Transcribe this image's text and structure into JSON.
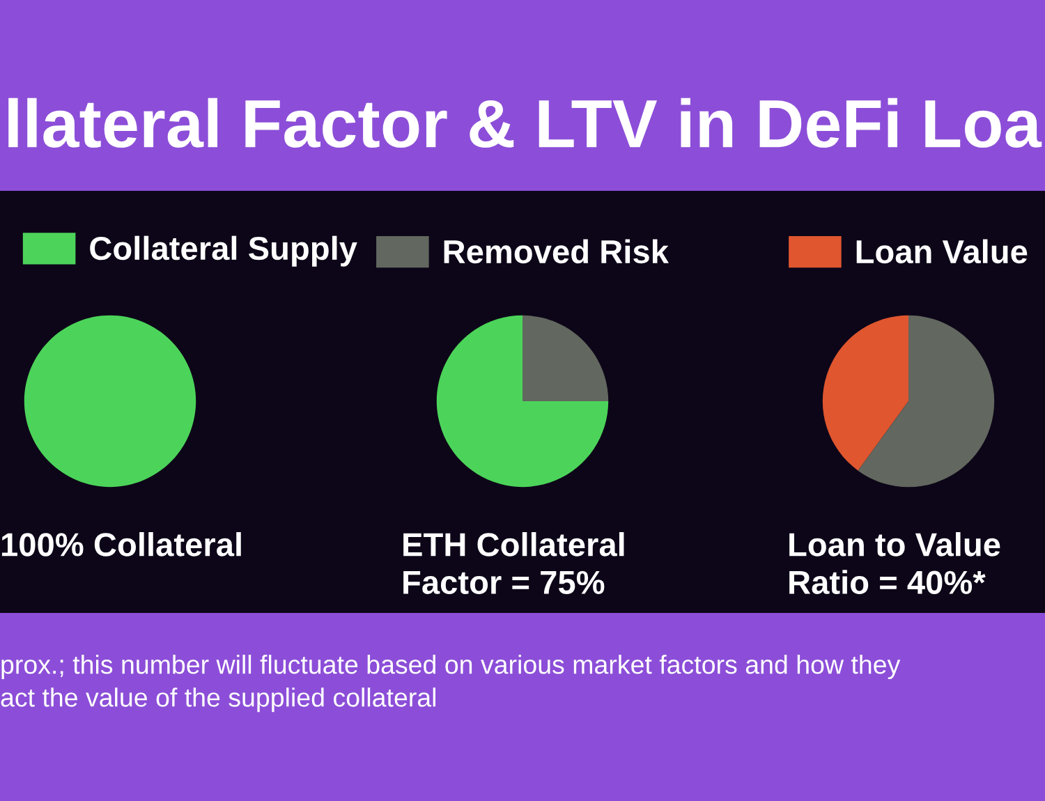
{
  "chart_data": [
    {
      "type": "pie",
      "title": "llateral Factor & LTV in DeFi Loa",
      "categories": [
        "Collateral Supply"
      ],
      "values": [
        100
      ],
      "colors": [
        "#4cd45a"
      ],
      "legend": "top",
      "xlabel": "100% Collateral"
    },
    {
      "type": "pie",
      "categories": [
        null,
        "Removed Risk"
      ],
      "values": [
        75,
        25
      ],
      "colors": [
        "#4cd45a",
        "#62675f"
      ],
      "legend": "top",
      "xlabel": "ETH Collateral\nFactor = 75%"
    },
    {
      "type": "pie",
      "categories": [
        "Loan Value",
        null
      ],
      "values": [
        40,
        60
      ],
      "colors": [
        "#e0562f",
        "#62675f"
      ],
      "legend": "top",
      "xlabel": "Loan to Value\nRatio = 40%*",
      "annotations": [
        "prox.; this number will fluctuate based on various market factors and how they\nact the value of the supplied collateral"
      ]
    }
  ]
}
